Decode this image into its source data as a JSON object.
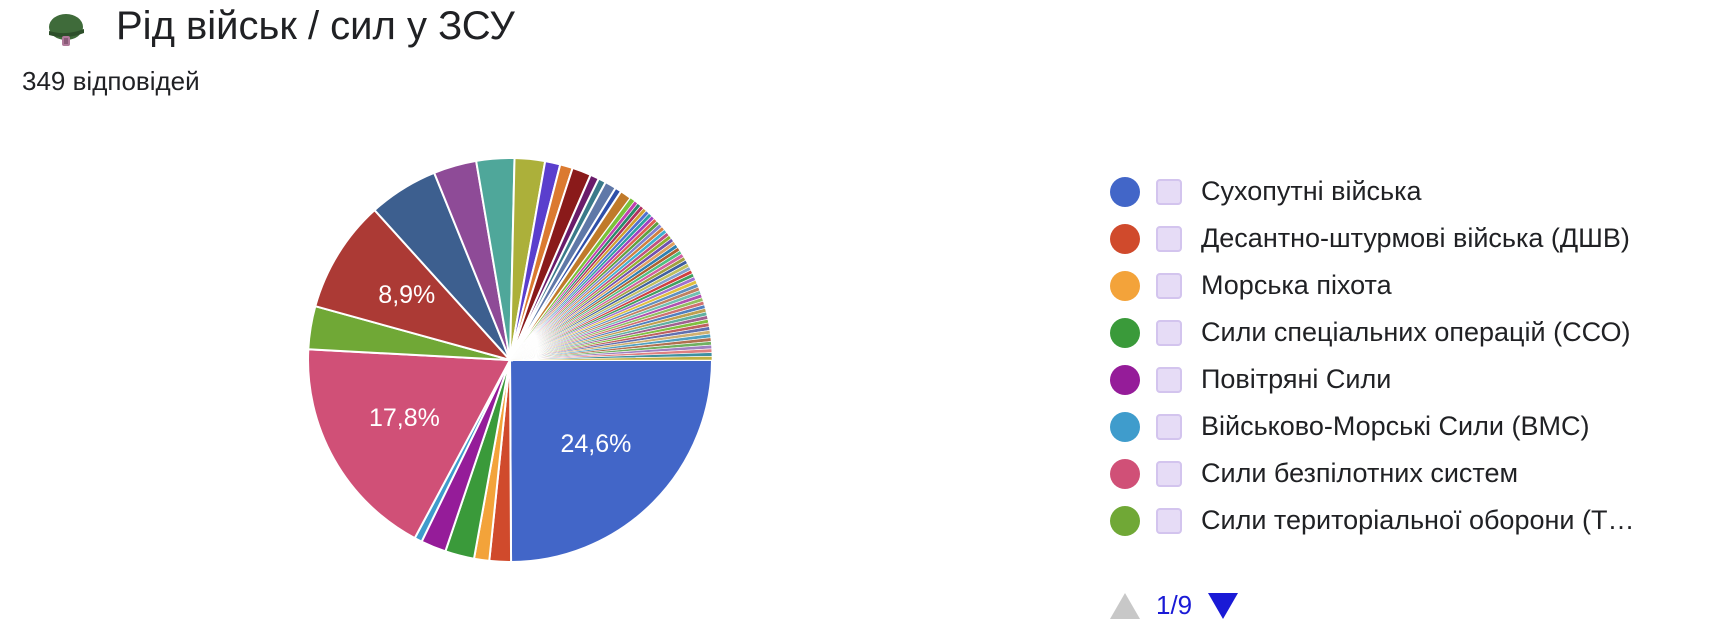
{
  "header": {
    "title": "Рід військ / сил у ЗСУ",
    "responses": "349 відповідей",
    "icon": "helmet-icon"
  },
  "legend": {
    "items": [
      {
        "label": "Сухопутні війська",
        "color": "#4266c8"
      },
      {
        "label": "Десантно-штурмові війська (ДШВ)",
        "color": "#d04a2c"
      },
      {
        "label": "Морська піхота",
        "color": "#f3a33a"
      },
      {
        "label": "Сили спеціальних операцій (ССО)",
        "color": "#3a9a3a"
      },
      {
        "label": "Повітряні Сили",
        "color": "#951c99"
      },
      {
        "label": "Військово-Морські Сили (ВМС)",
        "color": "#3f9ccc"
      },
      {
        "label": "Сили безпілотних систем",
        "color": "#d05077"
      },
      {
        "label": "Сили територіальної оборони (Т…",
        "color": "#70a836"
      }
    ],
    "pager": {
      "label": "1/9",
      "prev": "arrow-up-icon",
      "next": "arrow-down-icon"
    }
  },
  "chart_data": {
    "type": "pie",
    "title": "Рід військ / сил у ЗСУ",
    "total_responses": 349,
    "unit": "%",
    "start_angle_deg": 90,
    "slices": [
      {
        "value": 24.6,
        "color": "#4266c8",
        "label": "24,6%"
      },
      {
        "value": 1.7,
        "color": "#d04a2c"
      },
      {
        "value": 1.2,
        "color": "#f3a33a"
      },
      {
        "value": 2.3,
        "color": "#3a9a3a"
      },
      {
        "value": 2.0,
        "color": "#951c99"
      },
      {
        "value": 0.6,
        "color": "#3f9ccc"
      },
      {
        "value": 17.8,
        "color": "#d05077",
        "label": "17,8%"
      },
      {
        "value": 3.4,
        "color": "#70a836"
      },
      {
        "value": 8.9,
        "color": "#ac3a35",
        "label": "8,9%"
      },
      {
        "value": 5.5,
        "color": "#3d5f8f"
      },
      {
        "value": 3.4,
        "color": "#8e4b97"
      },
      {
        "value": 3.0,
        "color": "#4fa79a"
      },
      {
        "value": 2.4,
        "color": "#acb03a"
      },
      {
        "value": 1.2,
        "color": "#5a3fcd"
      },
      {
        "value": 1.0,
        "color": "#db7a30"
      },
      {
        "value": 1.5,
        "color": "#8a1a1a"
      },
      {
        "value": 0.7,
        "color": "#6a1c6a"
      },
      {
        "value": 0.6,
        "color": "#3a7a8a"
      },
      {
        "value": 0.9,
        "color": "#5f78a8"
      },
      {
        "value": 0.5,
        "color": "#2f4fa8"
      },
      {
        "value": 0.9,
        "color": "#c07a2a"
      },
      {
        "value": 0.4,
        "color": "#7ac23a"
      },
      {
        "value": 0.3,
        "color": "#c040b0"
      },
      {
        "value": 0.3,
        "color": "#2a8a6a"
      },
      {
        "value": 0.29,
        "color": "#b03060"
      },
      {
        "value": 0.29,
        "color": "#d0a030"
      },
      {
        "value": 0.29,
        "color": "#5070d0"
      },
      {
        "value": 0.29,
        "color": "#30a0a0"
      },
      {
        "value": 0.29,
        "color": "#a040c0"
      },
      {
        "value": 0.29,
        "color": "#e06050"
      },
      {
        "value": 0.29,
        "color": "#60a040"
      },
      {
        "value": 0.29,
        "color": "#8080d0"
      },
      {
        "value": 0.29,
        "color": "#d08040"
      },
      {
        "value": 0.29,
        "color": "#40b0d0"
      },
      {
        "value": 0.29,
        "color": "#c05080"
      },
      {
        "value": 0.29,
        "color": "#90b030"
      },
      {
        "value": 0.29,
        "color": "#7050b0"
      },
      {
        "value": 0.29,
        "color": "#e0a060"
      },
      {
        "value": 0.29,
        "color": "#3080b0"
      },
      {
        "value": 0.29,
        "color": "#b06030"
      },
      {
        "value": 0.29,
        "color": "#50c080"
      },
      {
        "value": 0.29,
        "color": "#d060a0"
      },
      {
        "value": 0.29,
        "color": "#a0a040"
      },
      {
        "value": 0.29,
        "color": "#4060a0"
      },
      {
        "value": 0.29,
        "color": "#c0c060"
      },
      {
        "value": 0.29,
        "color": "#80a0d0"
      },
      {
        "value": 0.29,
        "color": "#d04040"
      },
      {
        "value": 0.29,
        "color": "#40a060"
      },
      {
        "value": 0.29,
        "color": "#a070d0"
      },
      {
        "value": 0.29,
        "color": "#e0c040"
      },
      {
        "value": 0.29,
        "color": "#6090c0"
      },
      {
        "value": 0.29,
        "color": "#c08060"
      },
      {
        "value": 0.29,
        "color": "#70c0b0"
      },
      {
        "value": 0.29,
        "color": "#b050b0"
      },
      {
        "value": 0.29,
        "color": "#90c060"
      },
      {
        "value": 0.29,
        "color": "#d07070"
      },
      {
        "value": 0.29,
        "color": "#5080c0"
      },
      {
        "value": 0.29,
        "color": "#c0a050"
      },
      {
        "value": 0.29,
        "color": "#60b0a0"
      },
      {
        "value": 0.29,
        "color": "#a06090"
      },
      {
        "value": 0.29,
        "color": "#80c040"
      },
      {
        "value": 0.29,
        "color": "#c06060"
      },
      {
        "value": 0.29,
        "color": "#6070b0"
      },
      {
        "value": 0.29,
        "color": "#d0b070"
      },
      {
        "value": 0.29,
        "color": "#50a0c0"
      },
      {
        "value": 0.29,
        "color": "#b07050"
      },
      {
        "value": 0.29,
        "color": "#70b060"
      },
      {
        "value": 0.29,
        "color": "#a080c0"
      },
      {
        "value": 0.29,
        "color": "#e08080"
      },
      {
        "value": 0.29,
        "color": "#4090a0"
      },
      {
        "value": 0.29,
        "color": "#c0b040"
      }
    ]
  }
}
